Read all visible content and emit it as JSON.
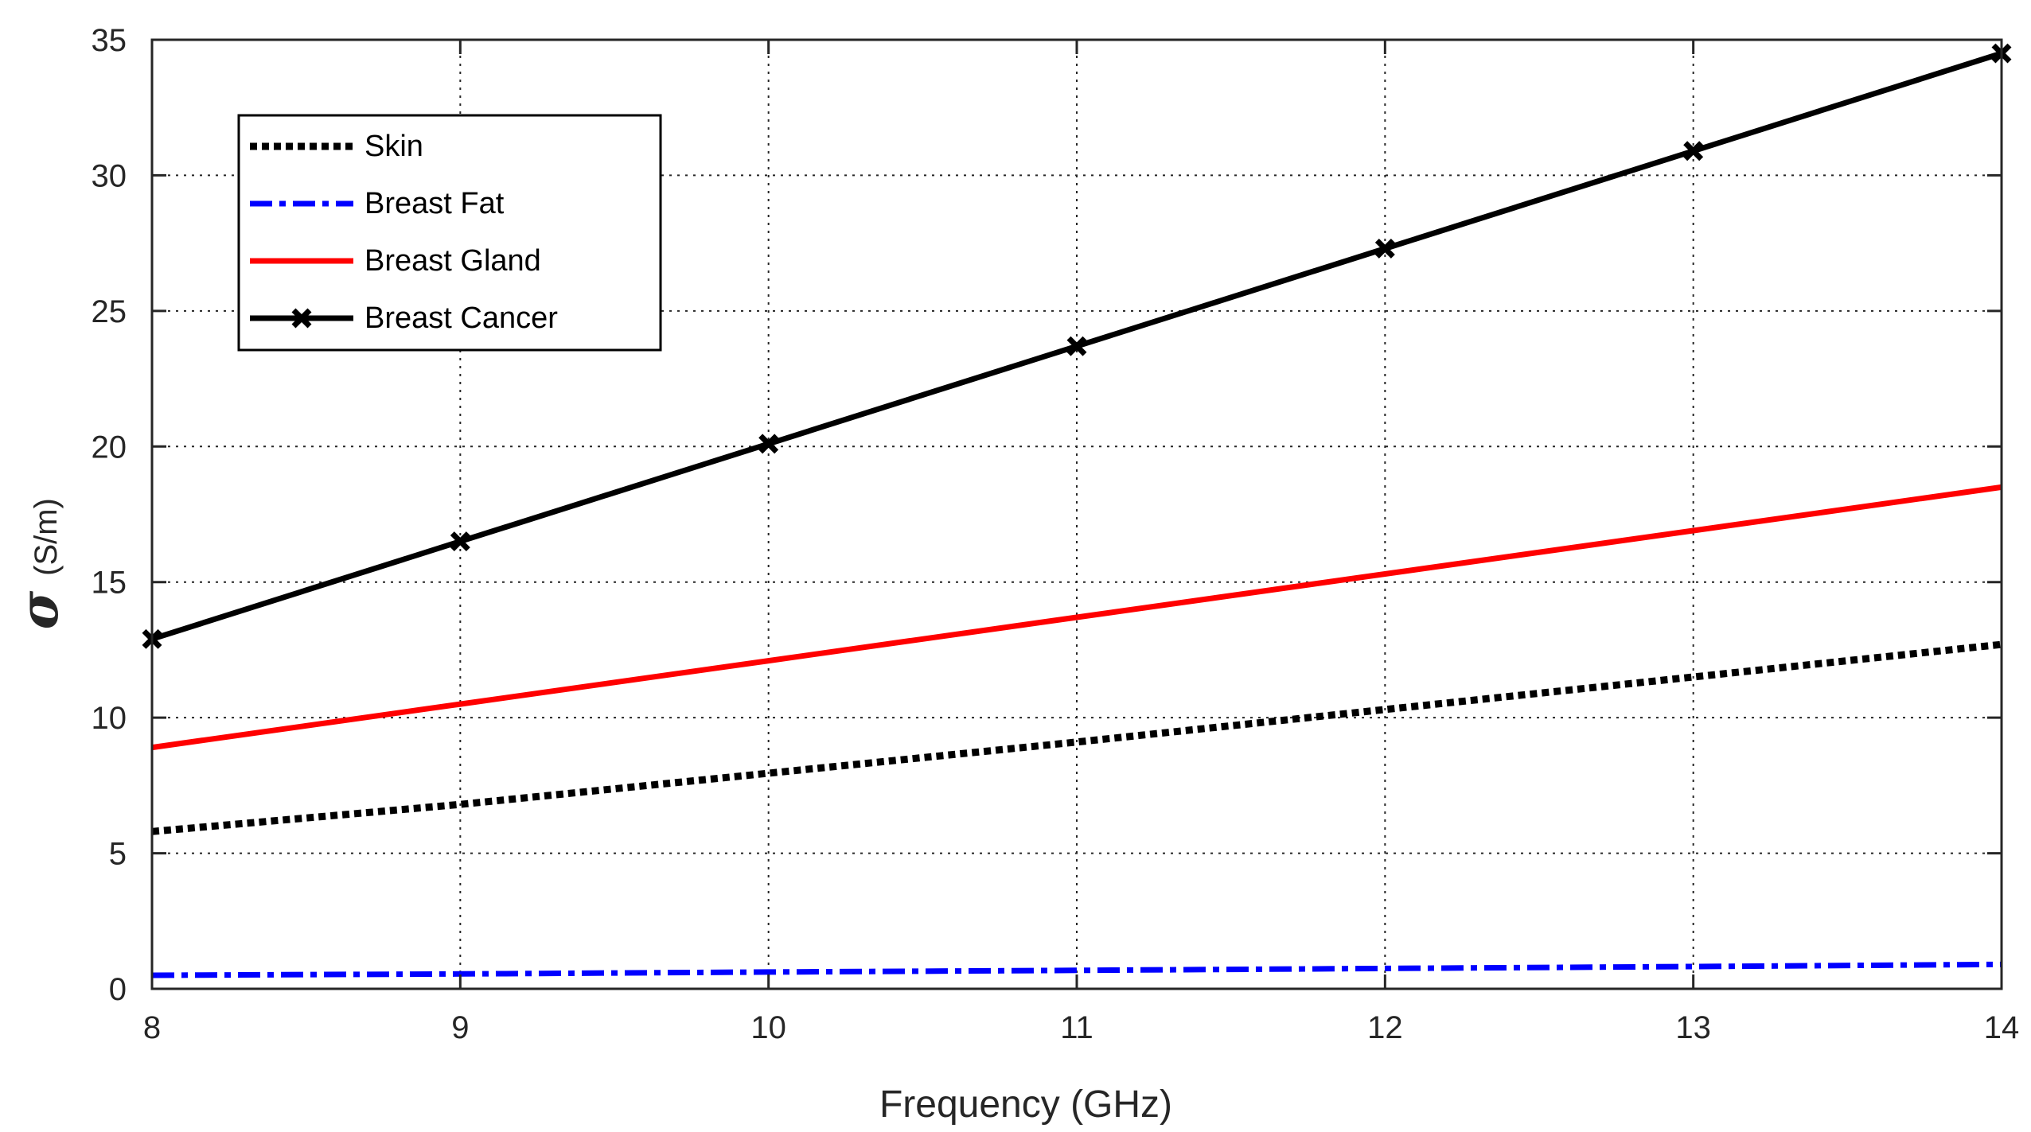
{
  "chart_data": {
    "type": "line",
    "title": "",
    "xlabel": "Frequency (GHz)",
    "ylabel_symbol": "σ",
    "ylabel_unit": "(S/m)",
    "xlim": [
      8,
      14
    ],
    "ylim": [
      0,
      35
    ],
    "xticks": [
      8,
      9,
      10,
      11,
      12,
      13,
      14
    ],
    "yticks": [
      0,
      5,
      10,
      15,
      20,
      25,
      30,
      35
    ],
    "grid": true,
    "legend_position": "top-left",
    "series": [
      {
        "name": "Skin",
        "color": "#000000",
        "style": "dotted",
        "marker": "none",
        "x": [
          8,
          9,
          10,
          11,
          12,
          13,
          14
        ],
        "values": [
          5.8,
          6.8,
          7.95,
          9.1,
          10.3,
          11.5,
          12.7
        ]
      },
      {
        "name": "Breast Fat",
        "color": "#0000ff",
        "style": "dashdot",
        "marker": "none",
        "x": [
          8,
          9,
          10,
          11,
          12,
          13,
          14
        ],
        "values": [
          0.5,
          0.55,
          0.62,
          0.68,
          0.75,
          0.82,
          0.9
        ]
      },
      {
        "name": "Breast Gland",
        "color": "#ff0000",
        "style": "solid",
        "marker": "none",
        "x": [
          8,
          9,
          10,
          11,
          12,
          13,
          14
        ],
        "values": [
          8.9,
          10.5,
          12.1,
          13.7,
          15.3,
          16.9,
          18.5
        ]
      },
      {
        "name": "Breast Cancer",
        "color": "#000000",
        "style": "solid",
        "marker": "x",
        "x": [
          8,
          9,
          10,
          11,
          12,
          13,
          14
        ],
        "values": [
          12.9,
          16.5,
          20.1,
          23.7,
          27.3,
          30.9,
          34.5
        ]
      }
    ]
  }
}
